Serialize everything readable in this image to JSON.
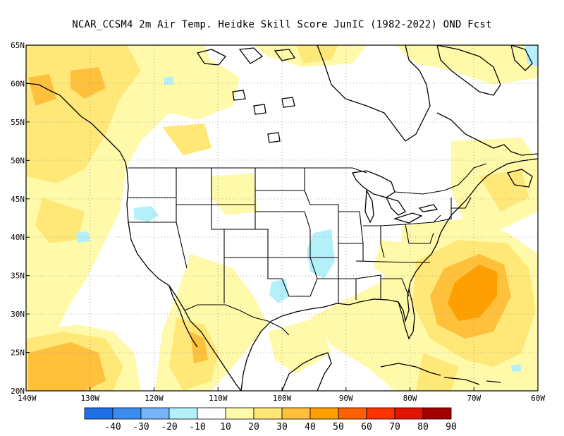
{
  "title": "NCAR_CCSM4  2m Air Temp. Heidke Skill Score JunIC (1982-2022) OND Fcst",
  "map": {
    "lon_labels": [
      "140W",
      "130W",
      "120W",
      "110W",
      "100W",
      "90W",
      "80W",
      "70W",
      "60W"
    ],
    "lat_labels": [
      "20N",
      "25N",
      "30N",
      "35N",
      "40N",
      "45N",
      "50N",
      "55N",
      "60N",
      "65N"
    ]
  },
  "colorbar": {
    "labels": [
      "-40",
      "-30",
      "-20",
      "-10",
      "10",
      "20",
      "30",
      "40",
      "50",
      "60",
      "70",
      "80",
      "90"
    ],
    "colors": [
      "#1e6ee6",
      "#3c8cf0",
      "#78b4fa",
      "#b4f0fa",
      "#ffffff",
      "#fffaaa",
      "#ffe878",
      "#ffc03c",
      "#ffa000",
      "#ff6000",
      "#ff3200",
      "#e11400",
      "#a50000"
    ]
  },
  "shading_colors": {
    "light_yellow": "#fffaaa",
    "yellow": "#ffe878",
    "orange": "#ffc03c",
    "dark_orange": "#ffa000",
    "light_blue": "#b4f0fa"
  }
}
